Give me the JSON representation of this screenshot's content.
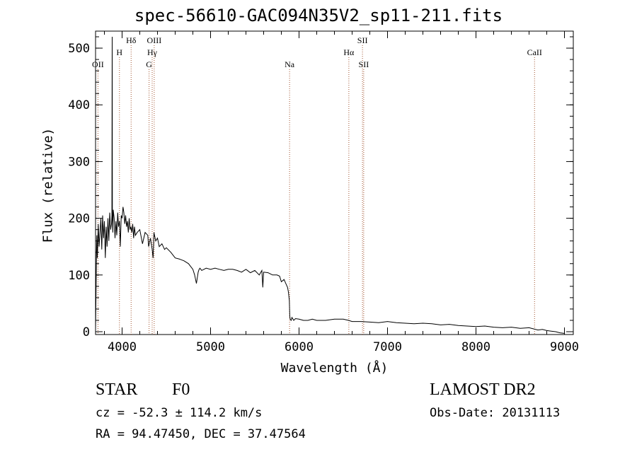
{
  "title": "spec-56610-GAC094N35V2_sp11-211.fits",
  "info": {
    "object_type": "STAR",
    "object_class": "F0",
    "survey": "LAMOST DR2",
    "cz": "cz = -52.3 ± 114.2 km/s",
    "obs_date": "Obs-Date: 20131113",
    "radec": "RA =  94.47450, DEC =  37.47564"
  },
  "colors": {
    "spectrum": "#000000",
    "line_marker": "#a0522d",
    "axis": "#000000"
  },
  "chart_data": {
    "type": "line",
    "xlabel": "Wavelength (Å)",
    "ylabel": "Flux (relative)",
    "xlim": [
      3700,
      9100
    ],
    "ylim": [
      -5,
      530
    ],
    "xticks": [
      4000,
      5000,
      6000,
      7000,
      8000,
      9000
    ],
    "yticks": [
      0,
      100,
      200,
      300,
      400,
      500
    ],
    "grid": false,
    "series": [
      {
        "x": [
          3700,
          3705,
          3710,
          3715,
          3720,
          3730,
          3740,
          3750,
          3760,
          3770,
          3780,
          3790,
          3800,
          3810,
          3820,
          3830,
          3840,
          3850,
          3860,
          3870,
          3880,
          3885,
          3888,
          3890,
          3895,
          3900,
          3910,
          3920,
          3930,
          3940,
          3950,
          3960,
          3970,
          3980,
          3990,
          4000,
          4010,
          4020,
          4030,
          4040,
          4050,
          4060,
          4070,
          4080,
          4090,
          4100,
          4110,
          4120,
          4130,
          4140,
          4150,
          4170,
          4200,
          4230,
          4260,
          4290,
          4300,
          4320,
          4340,
          4350,
          4360,
          4380,
          4400,
          4420,
          4450,
          4480,
          4500,
          4550,
          4600,
          4650,
          4700,
          4750,
          4800,
          4820,
          4840,
          4860,
          4870,
          4880,
          4900,
          4950,
          5000,
          5050,
          5100,
          5150,
          5200,
          5250,
          5300,
          5350,
          5400,
          5450,
          5500,
          5550,
          5580,
          5590,
          5600,
          5650,
          5700,
          5750,
          5780,
          5800,
          5830,
          5850,
          5870,
          5880,
          5890,
          5895,
          5900,
          5910,
          5920,
          5940,
          5960,
          6000,
          6050,
          6100,
          6150,
          6200,
          6300,
          6400,
          6500,
          6560,
          6600,
          6700,
          6800,
          6900,
          7000,
          7100,
          7200,
          7300,
          7400,
          7500,
          7600,
          7700,
          7800,
          7900,
          8000,
          8100,
          8200,
          8300,
          8400,
          8500,
          8600,
          8650,
          8700,
          8750,
          8800,
          8850,
          8900,
          8950,
          9000
        ],
        "y": [
          5,
          60,
          140,
          170,
          130,
          190,
          150,
          175,
          200,
          145,
          205,
          165,
          195,
          130,
          185,
          150,
          200,
          160,
          210,
          180,
          190,
          205,
          520,
          200,
          175,
          215,
          200,
          165,
          195,
          170,
          210,
          185,
          195,
          150,
          205,
          200,
          220,
          210,
          190,
          205,
          185,
          195,
          175,
          200,
          180,
          185,
          175,
          190,
          165,
          185,
          170,
          175,
          180,
          155,
          175,
          170,
          150,
          165,
          145,
          130,
          175,
          160,
          165,
          150,
          155,
          145,
          148,
          140,
          130,
          128,
          125,
          120,
          110,
          100,
          85,
          105,
          110,
          112,
          108,
          112,
          110,
          112,
          110,
          108,
          110,
          110,
          108,
          105,
          110,
          104,
          108,
          100,
          108,
          78,
          105,
          104,
          100,
          100,
          98,
          88,
          92,
          85,
          78,
          70,
          55,
          28,
          22,
          20,
          25,
          20,
          23,
          22,
          20,
          20,
          22,
          20,
          20,
          22,
          22,
          20,
          18,
          18,
          17,
          16,
          18,
          16,
          15,
          14,
          15,
          14,
          12,
          13,
          11,
          10,
          9,
          10,
          8,
          7,
          8,
          6,
          7,
          5,
          3,
          4,
          2,
          1,
          0,
          -2,
          -3
        ]
      }
    ],
    "annotations": [
      {
        "label": "OII",
        "x": 3727,
        "row": 3
      },
      {
        "label": "H",
        "x": 3970,
        "row": 2
      },
      {
        "label": "Hδ",
        "x": 4102,
        "row": 1
      },
      {
        "label": "G",
        "x": 4305,
        "row": 3
      },
      {
        "label": "Hγ",
        "x": 4340,
        "row": 2
      },
      {
        "label": "OIII",
        "x": 4363,
        "row": 1
      },
      {
        "label": "Na",
        "x": 5893,
        "row": 3
      },
      {
        "label": "Hα",
        "x": 6563,
        "row": 2
      },
      {
        "label": "SII",
        "x": 6717,
        "row": 1
      },
      {
        "label": "SII",
        "x": 6731,
        "row": 3
      },
      {
        "label": "CaII",
        "x": 8662,
        "row": 2
      }
    ]
  }
}
